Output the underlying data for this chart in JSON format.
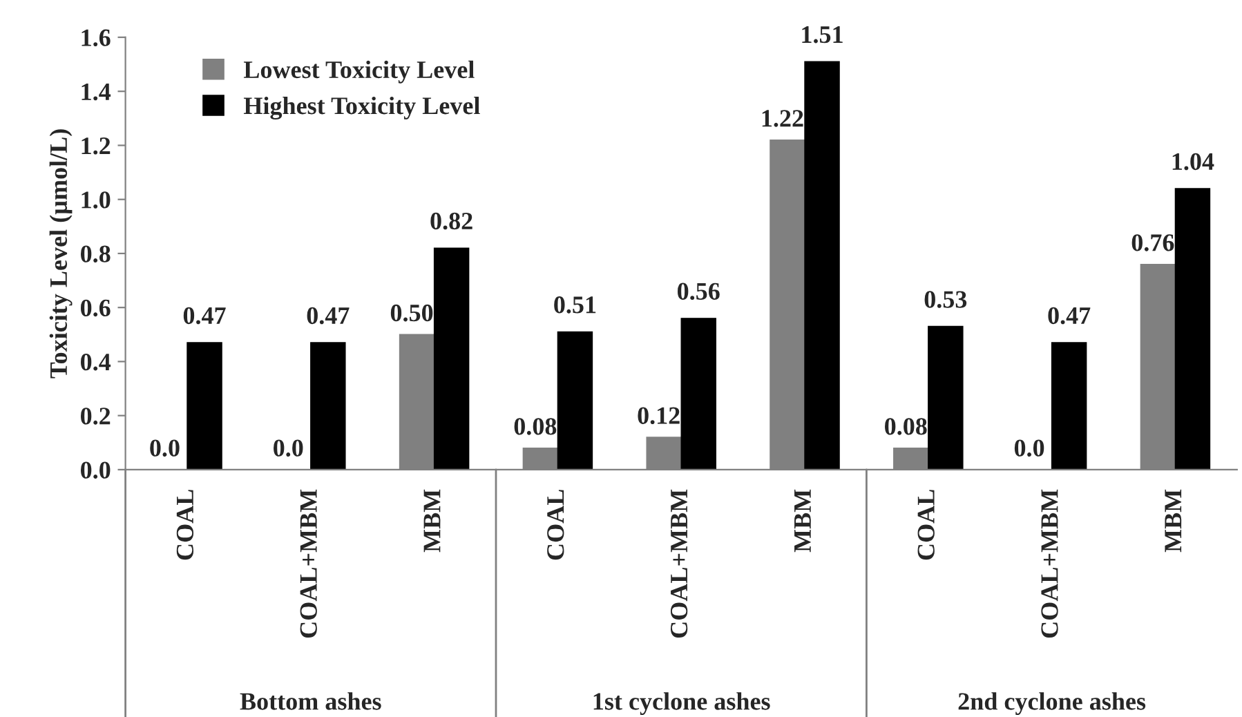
{
  "chart_data": {
    "type": "bar",
    "ylabel": "Toxicity Level (µmol/L)",
    "categories": [
      "COAL",
      "COAL+MBM",
      "MBM",
      "COAL",
      "COAL+MBM",
      "MBM",
      "COAL",
      "COAL+MBM",
      "MBM"
    ],
    "series": [
      {
        "name": "Lowest Toxicity Level",
        "color": "#808080",
        "values": [
          0.0,
          0.0,
          0.5,
          0.08,
          0.12,
          1.22,
          0.08,
          0.0,
          0.76
        ],
        "value_labels": [
          "0.0",
          "0.0",
          "0.50",
          "0.08",
          "0.12",
          "1.22",
          "0.08",
          "0.0",
          "0.76"
        ]
      },
      {
        "name": "Highest Toxicity Level",
        "color": "#000000",
        "values": [
          0.47,
          0.47,
          0.82,
          0.51,
          0.56,
          1.51,
          0.53,
          0.47,
          1.04
        ],
        "value_labels": [
          "0.47",
          "0.47",
          "0.82",
          "0.51",
          "0.56",
          "1.51",
          "0.53",
          "0.47",
          "1.04"
        ]
      }
    ],
    "annotations": [
      "Bottom ashes",
      "1st cyclone ashes",
      "2nd cyclone ashes"
    ],
    "ylim": [
      0,
      1.6
    ],
    "yticks": [
      {
        "value": 0,
        "label": "0.0"
      },
      {
        "value": 0.2,
        "label": "0.2"
      },
      {
        "value": 0.4,
        "label": "0.4"
      },
      {
        "value": 0.6,
        "label": "0.6"
      },
      {
        "value": 0.8,
        "label": "0.8"
      },
      {
        "value": 1.0,
        "label": "1.0"
      },
      {
        "value": 1.2,
        "label": "1.2"
      },
      {
        "value": 1.4,
        "label": "1.4"
      },
      {
        "value": 1.6,
        "label": "1.6"
      }
    ],
    "grid": false,
    "legend": "top left"
  }
}
